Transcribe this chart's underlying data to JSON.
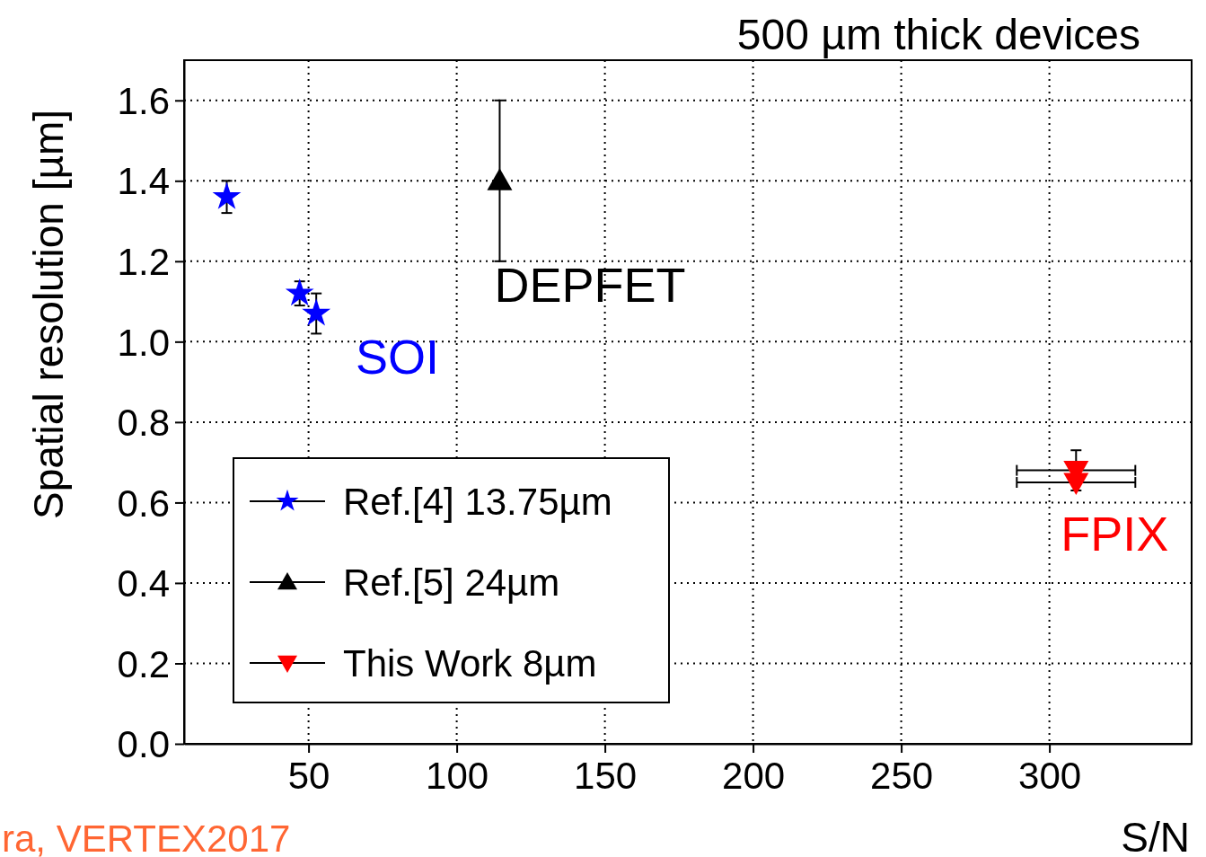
{
  "chart_data": {
    "type": "scatter",
    "title": "500 µm thick devices",
    "xlabel": "S/N",
    "ylabel": "Spatial resolution [µm]",
    "xlim": [
      8,
      348
    ],
    "ylim": [
      0,
      1.7
    ],
    "xticks": [
      50,
      100,
      150,
      200,
      250,
      300
    ],
    "yticks": [
      {
        "value": 0,
        "label": "0.0"
      },
      {
        "value": 0.2,
        "label": "0.2"
      },
      {
        "value": 0.4,
        "label": "0.4"
      },
      {
        "value": 0.6,
        "label": "0.6"
      },
      {
        "value": 0.8,
        "label": "0.8"
      },
      {
        "value": 1,
        "label": "1.0"
      },
      {
        "value": 1.2,
        "label": "1.2"
      },
      {
        "value": 1.4,
        "label": "1.4"
      },
      {
        "value": 1.6,
        "label": "1.6"
      }
    ],
    "grid": true,
    "legend": "bottom left",
    "series": [
      {
        "name": "Ref.[4] 13.75µm",
        "color": "#0000ff",
        "marker": "star",
        "x": [
          22.4,
          47,
          52.6
        ],
        "values": [
          1.36,
          1.12,
          1.07
        ],
        "errors": [
          0.04,
          0.03,
          0.05
        ]
      },
      {
        "name": "Ref.[5] 24µm",
        "color": "#000000",
        "marker": "triangle",
        "x": [
          114.5
        ],
        "values": [
          1.4
        ],
        "errors": [
          0.2
        ]
      },
      {
        "name": "This Work 8µm",
        "color": "#ff0000",
        "marker": "triangle-down",
        "x": [
          309,
          309
        ],
        "values": [
          0.68,
          0.65
        ],
        "errors": [
          0.05,
          null
        ],
        "xerrors": [
          20,
          20
        ]
      }
    ],
    "annotations": [
      "SOI",
      "DEPFET",
      "FPIX",
      "ra, VERTEX2017"
    ]
  }
}
